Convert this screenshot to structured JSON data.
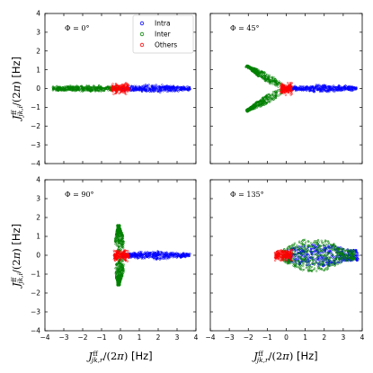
{
  "chart_data": {
    "type": "scatter",
    "layout": "2x2 grid, shared axes",
    "xlabel": "J^ff_{jk,r}/(2π) [Hz]",
    "ylabel": "J^ff_{jk,i}/(2π) [Hz]",
    "xlim": [
      -4,
      4
    ],
    "ylim": [
      -4,
      4
    ],
    "xticks": [
      "−4",
      "−3",
      "−2",
      "−1",
      "0",
      "1",
      "2",
      "3",
      "4"
    ],
    "yticks": [
      "4",
      "3",
      "2",
      "1",
      "0",
      "−1",
      "−2",
      "−3",
      "−4"
    ],
    "grid": false,
    "legend": {
      "placement": "top-right of first panel",
      "entries": [
        {
          "name": "Intra",
          "color": "#0000ff"
        },
        {
          "name": "Inter",
          "color": "#008000"
        },
        {
          "name": "Others",
          "color": "#ff0000"
        }
      ]
    },
    "panels": [
      {
        "label": "Φ = 0°",
        "clouds": [
          {
            "series": "Intra",
            "shape": "band",
            "x_range": [
              0.0,
              3.7
            ],
            "half_width": [
              0.25,
              0.12
            ]
          },
          {
            "series": "Inter",
            "shape": "band",
            "x_range": [
              -3.6,
              -0.1
            ],
            "half_width": [
              0.2,
              0.12
            ]
          },
          {
            "series": "Others",
            "shape": "blob",
            "x_range": [
              -0.5,
              0.5
            ],
            "half_width": [
              0.22,
              0.22
            ]
          }
        ]
      },
      {
        "label": "Φ = 45°",
        "clouds": [
          {
            "series": "Intra",
            "shape": "band",
            "x_range": [
              0.0,
              3.7
            ],
            "half_width": [
              0.25,
              0.12
            ]
          },
          {
            "series": "Inter",
            "shape": "wing",
            "tip": [
              -2.1,
              1.2
            ],
            "half_width": 0.16
          },
          {
            "series": "Inter",
            "shape": "wing",
            "tip": [
              -2.1,
              -1.2
            ],
            "half_width": 0.16
          },
          {
            "series": "Others",
            "shape": "blob",
            "x_range": [
              -0.3,
              0.3
            ],
            "half_width": [
              0.25,
              0.25
            ]
          }
        ]
      },
      {
        "label": "Φ = 90°",
        "clouds": [
          {
            "series": "Intra",
            "shape": "band",
            "x_range": [
              0.0,
              3.7
            ],
            "half_width": [
              0.25,
              0.12
            ]
          },
          {
            "series": "Inter",
            "shape": "wing",
            "tip": [
              -0.1,
              1.6
            ],
            "half_width": 0.18
          },
          {
            "series": "Inter",
            "shape": "wing",
            "tip": [
              -0.1,
              -1.6
            ],
            "half_width": 0.18
          },
          {
            "series": "Others",
            "shape": "blob",
            "x_range": [
              -0.35,
              0.45
            ],
            "half_width": [
              0.25,
              0.25
            ]
          }
        ]
      },
      {
        "label": "Φ = 135°",
        "clouds": [
          {
            "series": "Intra",
            "shape": "fan",
            "x_range": [
              0.0,
              3.8
            ],
            "spread": [
              0.3,
              0.6
            ]
          },
          {
            "series": "Inter",
            "shape": "fan",
            "x_range": [
              -0.2,
              3.6
            ],
            "spread": [
              0.3,
              0.9
            ]
          },
          {
            "series": "Others",
            "shape": "blob",
            "x_range": [
              -0.6,
              0.3
            ],
            "half_width": [
              0.28,
              0.28
            ]
          }
        ]
      }
    ]
  }
}
